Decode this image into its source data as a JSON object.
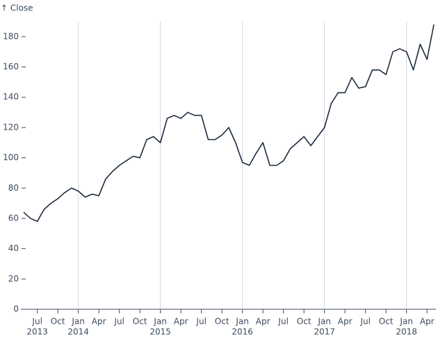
{
  "chart_data": {
    "type": "line",
    "y_label": "↑ Close",
    "x": [
      "2013-05",
      "2013-06",
      "2013-07",
      "2013-08",
      "2013-09",
      "2013-10",
      "2013-11",
      "2013-12",
      "2014-01",
      "2014-02",
      "2014-03",
      "2014-04",
      "2014-05",
      "2014-06",
      "2014-07",
      "2014-08",
      "2014-09",
      "2014-10",
      "2014-11",
      "2014-12",
      "2015-01",
      "2015-02",
      "2015-03",
      "2015-04",
      "2015-05",
      "2015-06",
      "2015-07",
      "2015-08",
      "2015-09",
      "2015-10",
      "2015-11",
      "2015-12",
      "2016-01",
      "2016-02",
      "2016-03",
      "2016-04",
      "2016-05",
      "2016-06",
      "2016-07",
      "2016-08",
      "2016-09",
      "2016-10",
      "2016-11",
      "2016-12",
      "2017-01",
      "2017-02",
      "2017-03",
      "2017-04",
      "2017-05",
      "2017-06",
      "2017-07",
      "2017-08",
      "2017-09",
      "2017-10",
      "2017-11",
      "2017-12",
      "2018-01",
      "2018-02",
      "2018-03",
      "2018-04",
      "2018-05"
    ],
    "series": [
      {
        "name": "Close",
        "color": "#1c2b3f",
        "values": [
          64,
          60,
          58,
          66,
          70,
          73,
          77,
          80,
          78,
          74,
          76,
          75,
          86,
          91,
          95,
          98,
          101,
          100,
          112,
          114,
          110,
          126,
          128,
          126,
          130,
          128,
          128,
          112,
          112,
          115,
          120,
          110,
          97,
          95,
          103,
          110,
          95,
          95,
          98,
          106,
          110,
          114,
          108,
          114,
          120,
          136,
          143,
          143,
          153,
          146,
          147,
          158,
          158,
          155,
          170,
          172,
          170,
          158,
          175,
          165,
          188
        ]
      }
    ],
    "xlim": [
      "2013-05",
      "2018-05"
    ],
    "xticks": [
      {
        "value": "2013-07",
        "label": "Jul",
        "year": "2013"
      },
      {
        "value": "2013-10",
        "label": "Oct"
      },
      {
        "value": "2014-01",
        "label": "Jan",
        "year": "2014"
      },
      {
        "value": "2014-04",
        "label": "Apr"
      },
      {
        "value": "2014-07",
        "label": "Jul"
      },
      {
        "value": "2014-10",
        "label": "Oct"
      },
      {
        "value": "2015-01",
        "label": "Jan",
        "year": "2015"
      },
      {
        "value": "2015-04",
        "label": "Apr"
      },
      {
        "value": "2015-07",
        "label": "Jul"
      },
      {
        "value": "2015-10",
        "label": "Oct"
      },
      {
        "value": "2016-01",
        "label": "Jan",
        "year": "2016"
      },
      {
        "value": "2016-04",
        "label": "Apr"
      },
      {
        "value": "2016-07",
        "label": "Jul"
      },
      {
        "value": "2016-10",
        "label": "Oct"
      },
      {
        "value": "2017-01",
        "label": "Jan",
        "year": "2017"
      },
      {
        "value": "2017-04",
        "label": "Apr"
      },
      {
        "value": "2017-07",
        "label": "Jul"
      },
      {
        "value": "2017-10",
        "label": "Oct"
      },
      {
        "value": "2018-01",
        "label": "Jan",
        "year": "2018"
      },
      {
        "value": "2018-04",
        "label": "Apr"
      }
    ],
    "ylim": [
      0,
      190
    ],
    "yticks": [
      0,
      20,
      40,
      60,
      80,
      100,
      120,
      140,
      160,
      180
    ],
    "grid": "january"
  }
}
